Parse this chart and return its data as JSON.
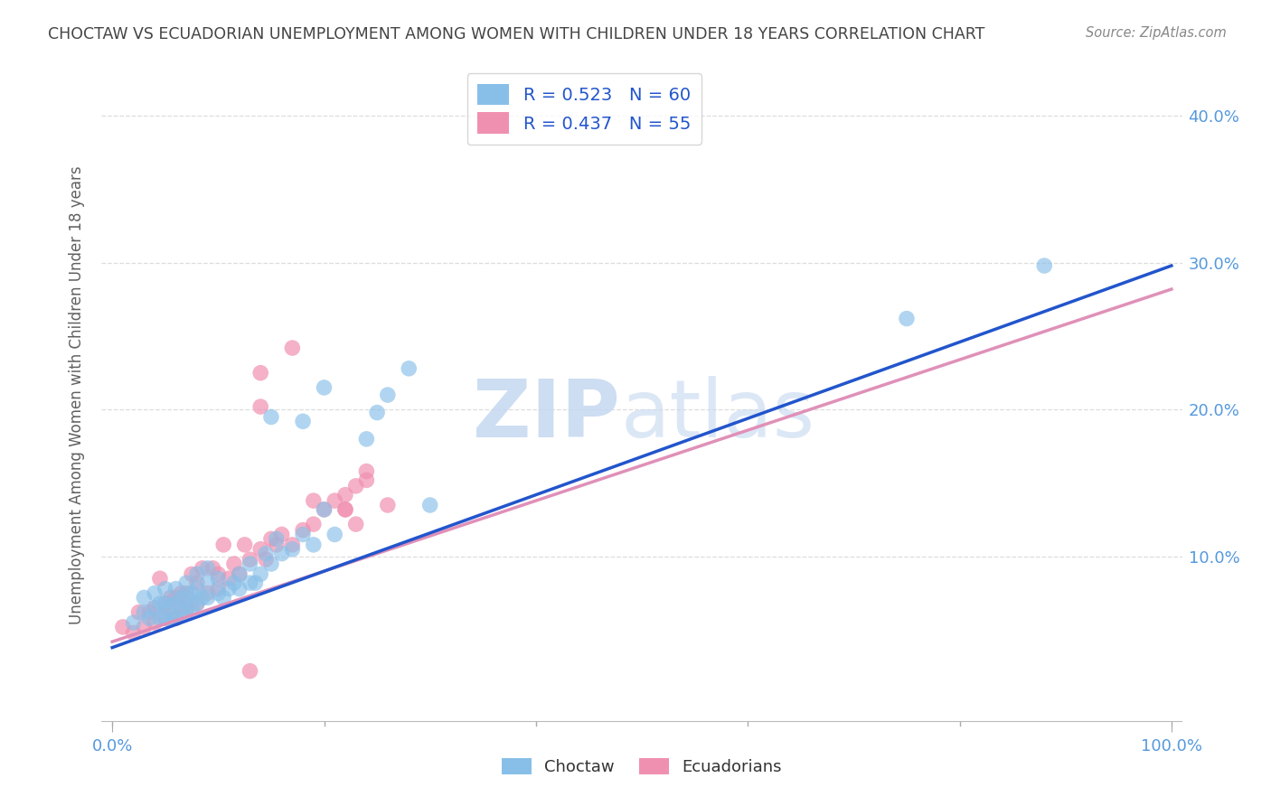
{
  "title": "CHOCTAW VS ECUADORIAN UNEMPLOYMENT AMONG WOMEN WITH CHILDREN UNDER 18 YEARS CORRELATION CHART",
  "source": "Source: ZipAtlas.com",
  "ylabel": "Unemployment Among Women with Children Under 18 years",
  "ytick_values": [
    0.1,
    0.2,
    0.3,
    0.4
  ],
  "ytick_labels": [
    "10.0%",
    "20.0%",
    "30.0%",
    "40.0%"
  ],
  "xtick_values": [
    0.0,
    1.0
  ],
  "xtick_labels": [
    "0.0%",
    "100.0%"
  ],
  "xlim": [
    -0.01,
    1.01
  ],
  "ylim": [
    -0.015,
    0.435
  ],
  "choctaw_color": "#88bfe8",
  "ecuadorian_color": "#f090b0",
  "choctaw_line_color": "#2255cc",
  "ecuadorian_line_color": "#e090b8",
  "tick_color": "#5599dd",
  "title_color": "#444444",
  "source_color": "#888888",
  "grid_color": "#dddddd",
  "bg_color": "#ffffff",
  "legend_label_color": "#2255cc",
  "bottom_legend_label_color": "#333333",
  "choctaw_R": 0.523,
  "choctaw_N": 60,
  "ecuadorian_R": 0.437,
  "ecuadorian_N": 55,
  "choctaw_line_x0": 0.0,
  "choctaw_line_y0": 0.038,
  "choctaw_line_x1": 1.0,
  "choctaw_line_y1": 0.298,
  "ecuadorian_line_x0": 0.0,
  "ecuadorian_line_y0": 0.042,
  "ecuadorian_line_x1": 1.0,
  "ecuadorian_line_y1": 0.282,
  "choctaw_x": [
    0.02,
    0.03,
    0.03,
    0.035,
    0.04,
    0.04,
    0.045,
    0.045,
    0.05,
    0.05,
    0.05,
    0.055,
    0.055,
    0.06,
    0.06,
    0.06,
    0.065,
    0.065,
    0.07,
    0.07,
    0.07,
    0.075,
    0.075,
    0.08,
    0.08,
    0.08,
    0.085,
    0.09,
    0.09,
    0.09,
    0.1,
    0.1,
    0.105,
    0.11,
    0.115,
    0.12,
    0.12,
    0.13,
    0.13,
    0.135,
    0.14,
    0.145,
    0.15,
    0.155,
    0.16,
    0.17,
    0.18,
    0.19,
    0.2,
    0.21,
    0.15,
    0.18,
    0.2,
    0.24,
    0.25,
    0.26,
    0.28,
    0.3,
    0.75,
    0.88
  ],
  "choctaw_y": [
    0.055,
    0.062,
    0.072,
    0.058,
    0.065,
    0.075,
    0.058,
    0.068,
    0.058,
    0.068,
    0.078,
    0.058,
    0.068,
    0.058,
    0.068,
    0.078,
    0.062,
    0.072,
    0.062,
    0.072,
    0.082,
    0.065,
    0.075,
    0.068,
    0.078,
    0.088,
    0.072,
    0.072,
    0.082,
    0.092,
    0.075,
    0.085,
    0.072,
    0.078,
    0.082,
    0.078,
    0.088,
    0.082,
    0.095,
    0.082,
    0.088,
    0.102,
    0.095,
    0.112,
    0.102,
    0.105,
    0.115,
    0.108,
    0.132,
    0.115,
    0.195,
    0.192,
    0.215,
    0.18,
    0.198,
    0.21,
    0.228,
    0.135,
    0.262,
    0.298
  ],
  "ecuadorian_x": [
    0.01,
    0.02,
    0.025,
    0.03,
    0.035,
    0.04,
    0.04,
    0.045,
    0.05,
    0.05,
    0.055,
    0.055,
    0.06,
    0.06,
    0.065,
    0.065,
    0.07,
    0.07,
    0.075,
    0.08,
    0.08,
    0.085,
    0.09,
    0.095,
    0.1,
    0.1,
    0.105,
    0.11,
    0.115,
    0.12,
    0.125,
    0.13,
    0.14,
    0.145,
    0.15,
    0.155,
    0.16,
    0.17,
    0.18,
    0.19,
    0.2,
    0.21,
    0.22,
    0.23,
    0.24,
    0.14,
    0.14,
    0.17,
    0.22,
    0.24,
    0.13,
    0.19,
    0.22,
    0.23,
    0.26
  ],
  "ecuadorian_y": [
    0.052,
    0.048,
    0.062,
    0.052,
    0.062,
    0.055,
    0.065,
    0.085,
    0.058,
    0.068,
    0.062,
    0.072,
    0.058,
    0.072,
    0.065,
    0.075,
    0.065,
    0.075,
    0.088,
    0.068,
    0.082,
    0.092,
    0.075,
    0.092,
    0.078,
    0.088,
    0.108,
    0.085,
    0.095,
    0.088,
    0.108,
    0.098,
    0.105,
    0.098,
    0.112,
    0.108,
    0.115,
    0.108,
    0.118,
    0.122,
    0.132,
    0.138,
    0.142,
    0.148,
    0.158,
    0.202,
    0.225,
    0.242,
    0.132,
    0.152,
    0.022,
    0.138,
    0.132,
    0.122,
    0.135
  ]
}
